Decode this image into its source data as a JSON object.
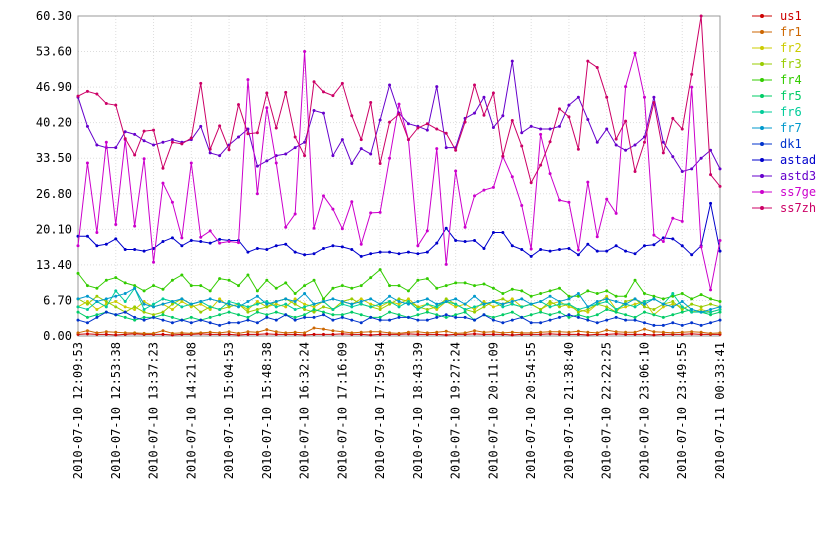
{
  "chart_data": {
    "type": "line",
    "categories": [
      "2010-07-10 12:09:53",
      null,
      null,
      null,
      "2010-07-10 12:53:38",
      null,
      null,
      null,
      "2010-07-10 13:37:23",
      null,
      null,
      null,
      "2010-07-10 14:21:08",
      null,
      null,
      null,
      "2010-07-10 15:04:53",
      null,
      null,
      null,
      "2010-07-10 15:48:38",
      null,
      null,
      null,
      "2010-07-10 16:32:24",
      null,
      null,
      null,
      "2010-07-10 17:16:09",
      null,
      null,
      null,
      "2010-07-10 17:59:54",
      null,
      null,
      null,
      "2010-07-10 18:43:39",
      null,
      null,
      null,
      "2010-07-10 19:27:24",
      null,
      null,
      null,
      "2010-07-10 20:11:09",
      null,
      null,
      null,
      "2010-07-10 20:54:55",
      null,
      null,
      null,
      "2010-07-10 21:38:40",
      null,
      null,
      null,
      "2010-07-10 22:22:25",
      null,
      null,
      null,
      "2010-07-10 23:06:10",
      null,
      null,
      null,
      "2010-07-10 23:49:55",
      null,
      null,
      null,
      "2010-07-11 00:33:41"
    ],
    "ylim": [
      0,
      60.3
    ],
    "yticks": [
      {
        "value": 0,
        "label": "0.00"
      },
      {
        "value": 6.7,
        "label": "6.70"
      },
      {
        "value": 13.4,
        "label": "13.40"
      },
      {
        "value": 20.1,
        "label": "20.10"
      },
      {
        "value": 26.8,
        "label": "26.80"
      },
      {
        "value": 33.5,
        "label": "33.50"
      },
      {
        "value": 40.2,
        "label": "40.20"
      },
      {
        "value": 46.9,
        "label": "46.90"
      },
      {
        "value": 53.6,
        "label": "53.60"
      },
      {
        "value": 60.3,
        "label": "60.30"
      }
    ],
    "grid": true,
    "legend": "right",
    "series": [
      {
        "name": "us1",
        "color": "#cc0000",
        "values": [
          0.3,
          0.4,
          0.3,
          0.3,
          0.2,
          0.3,
          0.4,
          0.3,
          0.3,
          0.3,
          0.2,
          0.3,
          0.3,
          0.4,
          0.3,
          0.3,
          0.3,
          0.2,
          0.3,
          0.3,
          0.4,
          0.3,
          0.3,
          0.3,
          0.2,
          0.3,
          0.3,
          0.3,
          0.4,
          0.3,
          0.3,
          0.2,
          0.3,
          0.3,
          0.3,
          0.4,
          0.3,
          0.3,
          0.3,
          0.2,
          0.3,
          0.3,
          0.4,
          0.3,
          0.3,
          0.3,
          0.2,
          0.3,
          0.3,
          0.3,
          0.4,
          0.3,
          0.3,
          0.3,
          0.2,
          0.3,
          0.3,
          0.4,
          0.3,
          0.3,
          0.3,
          0.2,
          0.3,
          0.3,
          0.3,
          0.4,
          0.3,
          0.3,
          0.3
        ]
      },
      {
        "name": "fr1",
        "color": "#cc6600",
        "values": [
          0.6,
          1.0,
          0.6,
          0.8,
          0.7,
          0.6,
          0.6,
          0.5,
          0.5,
          1.0,
          0.5,
          0.6,
          0.5,
          0.6,
          0.7,
          0.6,
          0.8,
          0.5,
          0.8,
          0.7,
          1.2,
          0.8,
          0.6,
          0.7,
          0.6,
          1.5,
          1.3,
          1.0,
          0.8,
          0.6,
          0.7,
          0.8,
          0.8,
          0.6,
          0.5,
          0.7,
          0.8,
          0.6,
          0.7,
          0.9,
          0.5,
          0.6,
          1.0,
          0.7,
          0.8,
          0.6,
          0.7,
          0.6,
          0.6,
          0.7,
          0.8,
          0.8,
          0.7,
          0.9,
          0.7,
          0.6,
          1.1,
          0.8,
          0.7,
          0.7,
          1.3,
          0.8,
          0.7,
          0.6,
          0.7,
          0.8,
          0.7,
          0.5,
          0.6
        ]
      },
      {
        "name": "fr2",
        "color": "#cccc00",
        "values": [
          5.5,
          6.5,
          5.0,
          6.0,
          6.5,
          5.5,
          5.0,
          6.5,
          5.5,
          6.0,
          5.0,
          6.5,
          5.5,
          6.0,
          5.0,
          7.0,
          5.5,
          6.0,
          5.0,
          6.5,
          5.5,
          6.0,
          5.5,
          7.0,
          6.0,
          5.5,
          6.5,
          5.0,
          6.5,
          6.0,
          7.0,
          6.0,
          5.5,
          6.5,
          6.0,
          7.0,
          5.5,
          6.0,
          5.0,
          6.5,
          5.5,
          6.0,
          5.0,
          6.5,
          5.5,
          6.0,
          7.0,
          5.5,
          6.0,
          5.0,
          6.0,
          6.5,
          5.5,
          5.0,
          4.5,
          6.0,
          7.5,
          5.0,
          5.5,
          6.0,
          6.5,
          4.0,
          5.5,
          6.0,
          5.5,
          4.5,
          5.0,
          4.5,
          5.0
        ]
      },
      {
        "name": "fr3",
        "color": "#99cc00",
        "values": [
          7.0,
          6.0,
          7.5,
          6.5,
          5.5,
          4.5,
          5.5,
          4.5,
          4.0,
          4.5,
          6.0,
          7.0,
          6.0,
          4.5,
          5.5,
          5.0,
          5.5,
          6.0,
          4.5,
          5.0,
          5.5,
          6.5,
          7.0,
          6.0,
          5.0,
          4.5,
          5.5,
          5.0,
          6.5,
          7.0,
          6.0,
          5.5,
          5.0,
          6.0,
          7.0,
          6.5,
          5.5,
          5.0,
          5.5,
          7.0,
          6.0,
          5.0,
          4.5,
          5.5,
          6.5,
          7.0,
          6.0,
          5.5,
          6.0,
          5.0,
          6.5,
          5.5,
          6.0,
          4.5,
          5.0,
          6.0,
          5.5,
          4.5,
          6.5,
          7.0,
          5.5,
          5.0,
          6.0,
          6.5,
          5.0,
          6.0,
          5.5,
          6.0,
          5.5
        ]
      },
      {
        "name": "fr4",
        "color": "#33cc00",
        "values": [
          11.8,
          9.5,
          9.0,
          10.5,
          11.0,
          10.0,
          9.5,
          8.5,
          9.5,
          8.8,
          10.5,
          11.5,
          9.5,
          9.5,
          8.5,
          10.8,
          10.5,
          9.5,
          11.5,
          8.5,
          10.5,
          9.0,
          10.0,
          8.0,
          9.5,
          10.5,
          7.0,
          9.0,
          9.5,
          9.0,
          9.5,
          11.0,
          12.5,
          9.5,
          9.5,
          8.5,
          10.5,
          10.8,
          9.0,
          9.5,
          10.0,
          10.0,
          9.5,
          9.8,
          9.0,
          8.0,
          8.8,
          8.5,
          7.5,
          8.0,
          8.5,
          9.0,
          7.5,
          7.5,
          8.5,
          8.0,
          8.5,
          7.5,
          7.5,
          10.5,
          8.0,
          7.5,
          7.0,
          7.5,
          8.0,
          7.0,
          7.8,
          7.0,
          6.5
        ]
      },
      {
        "name": "fr5",
        "color": "#00cc66",
        "values": [
          4.5,
          3.5,
          4.0,
          4.5,
          4.0,
          3.5,
          3.0,
          3.5,
          3.5,
          4.0,
          3.5,
          3.0,
          3.5,
          3.0,
          3.5,
          4.0,
          4.5,
          4.0,
          3.5,
          4.5,
          4.0,
          4.5,
          4.0,
          3.5,
          4.0,
          5.0,
          4.5,
          4.0,
          4.0,
          4.5,
          4.0,
          3.5,
          3.5,
          4.5,
          4.0,
          3.5,
          4.0,
          4.5,
          4.0,
          3.5,
          4.0,
          4.5,
          3.0,
          4.0,
          3.5,
          4.0,
          4.5,
          3.5,
          4.0,
          4.5,
          4.0,
          4.5,
          3.5,
          4.0,
          3.5,
          4.0,
          5.0,
          4.5,
          4.0,
          3.5,
          4.5,
          4.0,
          3.5,
          4.0,
          4.5,
          5.0,
          4.5,
          4.0,
          4.5
        ]
      },
      {
        "name": "fr6",
        "color": "#00cc99",
        "values": [
          5.5,
          5.0,
          6.5,
          5.5,
          8.5,
          6.5,
          9.0,
          5.0,
          6.0,
          7.0,
          6.5,
          5.5,
          6.0,
          6.5,
          5.5,
          5.0,
          6.5,
          6.0,
          5.5,
          6.0,
          6.5,
          5.5,
          6.0,
          5.0,
          5.5,
          6.0,
          6.5,
          5.0,
          6.0,
          5.5,
          6.0,
          5.5,
          6.0,
          6.5,
          5.5,
          6.5,
          5.0,
          6.0,
          5.5,
          6.5,
          6.0,
          5.0,
          5.5,
          6.0,
          6.5,
          5.5,
          6.0,
          5.5,
          6.0,
          6.5,
          5.5,
          6.0,
          6.0,
          5.0,
          5.5,
          6.0,
          6.5,
          5.0,
          6.0,
          5.5,
          6.5,
          7.0,
          6.0,
          8.0,
          5.5,
          4.5,
          4.5,
          4.5,
          5.0
        ]
      },
      {
        "name": "fr7",
        "color": "#0099cc",
        "values": [
          7.0,
          7.5,
          6.5,
          7.0,
          7.5,
          8.0,
          9.0,
          6.0,
          5.5,
          6.0,
          6.5,
          7.0,
          6.0,
          6.5,
          7.0,
          6.5,
          6.0,
          5.5,
          6.5,
          7.5,
          6.0,
          6.5,
          7.0,
          6.5,
          8.0,
          6.0,
          6.5,
          7.0,
          6.5,
          6.0,
          6.5,
          7.0,
          6.0,
          7.5,
          6.5,
          6.0,
          6.5,
          7.0,
          6.0,
          6.5,
          7.0,
          6.0,
          7.5,
          6.0,
          6.5,
          6.0,
          6.5,
          7.0,
          6.0,
          6.5,
          7.5,
          6.5,
          7.0,
          8.0,
          5.5,
          6.5,
          7.0,
          6.5,
          6.0,
          7.0,
          6.0,
          7.0,
          6.0,
          5.5,
          6.5,
          5.0,
          4.5,
          5.0,
          5.5
        ]
      },
      {
        "name": "dk1",
        "color": "#0033cc",
        "values": [
          3.0,
          2.5,
          3.5,
          4.5,
          4.0,
          4.5,
          3.5,
          3.0,
          3.5,
          3.0,
          2.5,
          3.0,
          2.5,
          3.0,
          2.5,
          2.0,
          2.5,
          2.5,
          3.0,
          2.5,
          3.5,
          3.0,
          4.0,
          3.0,
          3.5,
          3.5,
          4.0,
          3.0,
          3.5,
          3.0,
          2.5,
          3.5,
          3.0,
          3.0,
          3.5,
          3.5,
          3.0,
          3.0,
          3.5,
          4.0,
          3.5,
          3.5,
          3.0,
          4.0,
          3.0,
          2.5,
          3.0,
          3.5,
          2.5,
          2.5,
          3.0,
          3.5,
          4.0,
          3.5,
          3.0,
          2.5,
          3.0,
          3.5,
          3.0,
          3.0,
          2.5,
          2.0,
          2.0,
          2.5,
          2.0,
          2.5,
          2.0,
          2.5,
          3.0
        ]
      },
      {
        "name": "astad",
        "color": "#0000cc",
        "values": [
          18.8,
          18.8,
          17.0,
          17.3,
          18.3,
          16.3,
          16.3,
          16.0,
          16.5,
          17.8,
          18.5,
          17.0,
          18.0,
          17.8,
          17.5,
          18.2,
          18.0,
          18.0,
          15.8,
          16.5,
          16.3,
          17.0,
          17.3,
          15.8,
          15.3,
          15.5,
          16.5,
          17.0,
          16.8,
          16.3,
          15.0,
          15.5,
          15.8,
          15.8,
          15.5,
          15.8,
          15.5,
          15.8,
          17.5,
          20.3,
          18.0,
          17.8,
          18.0,
          16.5,
          19.5,
          19.5,
          17.0,
          16.3,
          15.0,
          16.3,
          16.0,
          16.3,
          16.5,
          15.3,
          17.3,
          16.0,
          16.0,
          17.0,
          16.0,
          15.5,
          17.0,
          17.2,
          18.5,
          18.3,
          17.0,
          15.3,
          17.0,
          25.0,
          16.0
        ]
      },
      {
        "name": "astd3",
        "color": "#6600cc",
        "values": [
          45.0,
          39.5,
          36.0,
          35.5,
          35.5,
          38.5,
          38.0,
          36.8,
          36.0,
          36.5,
          37.0,
          36.5,
          37.0,
          39.5,
          34.5,
          34.0,
          36.0,
          37.5,
          39.0,
          32.0,
          33.0,
          34.0,
          34.3,
          35.5,
          36.5,
          42.5,
          42.0,
          34.0,
          37.0,
          32.5,
          35.3,
          34.3,
          40.7,
          47.3,
          42.0,
          40.0,
          39.5,
          38.8,
          47.0,
          35.5,
          35.5,
          41.0,
          42.0,
          45.0,
          39.3,
          41.5,
          51.8,
          38.3,
          39.5,
          39.0,
          39.0,
          39.5,
          43.5,
          45.0,
          40.8,
          36.5,
          39.0,
          36.0,
          35.0,
          36.0,
          37.5,
          45.0,
          36.5,
          33.8,
          31.0,
          31.5,
          33.5,
          35.0,
          31.5
        ]
      },
      {
        "name": "ss7ge",
        "color": "#cc00cc",
        "values": [
          17.0,
          32.6,
          19.5,
          36.5,
          21.0,
          37.0,
          20.7,
          33.4,
          13.9,
          28.8,
          25.2,
          18.5,
          32.6,
          18.6,
          19.8,
          17.5,
          17.8,
          17.6,
          48.3,
          26.8,
          43.0,
          32.6,
          20.5,
          23.0,
          53.6,
          20.3,
          26.4,
          23.9,
          20.2,
          25.3,
          17.3,
          23.2,
          23.3,
          33.5,
          43.7,
          37.0,
          17.0,
          19.8,
          35.3,
          13.5,
          31.1,
          20.5,
          26.4,
          27.5,
          28.0,
          33.8,
          30.0,
          24.6,
          16.4,
          38.0,
          30.6,
          25.6,
          25.2,
          16.2,
          29.0,
          18.7,
          25.8,
          23.1,
          47.0,
          53.3,
          45.0,
          19.0,
          17.8,
          22.2,
          21.6,
          46.9,
          16.8,
          8.7,
          18.0
        ]
      },
      {
        "name": "ss7zh",
        "color": "#cc0066",
        "values": [
          45.2,
          46.1,
          45.6,
          43.8,
          43.5,
          37.2,
          34.1,
          38.6,
          38.8,
          31.6,
          36.5,
          36.2,
          37.3,
          47.6,
          35.2,
          39.6,
          35.1,
          43.6,
          38.1,
          38.3,
          45.8,
          39.2,
          45.9,
          37.5,
          34.0,
          47.9,
          46.0,
          45.3,
          47.6,
          41.5,
          37.0,
          44.0,
          32.5,
          40.3,
          41.8,
          37.0,
          39.2,
          40.0,
          39.0,
          38.2,
          35.0,
          40.3,
          47.3,
          41.6,
          45.8,
          33.9,
          40.6,
          35.8,
          28.9,
          32.2,
          36.6,
          42.8,
          41.3,
          35.2,
          51.8,
          50.6,
          45.0,
          37.1,
          40.5,
          31.0,
          36.5,
          44.0,
          34.5,
          41.0,
          39.0,
          49.3,
          60.3,
          30.4,
          28.2
        ]
      }
    ]
  }
}
